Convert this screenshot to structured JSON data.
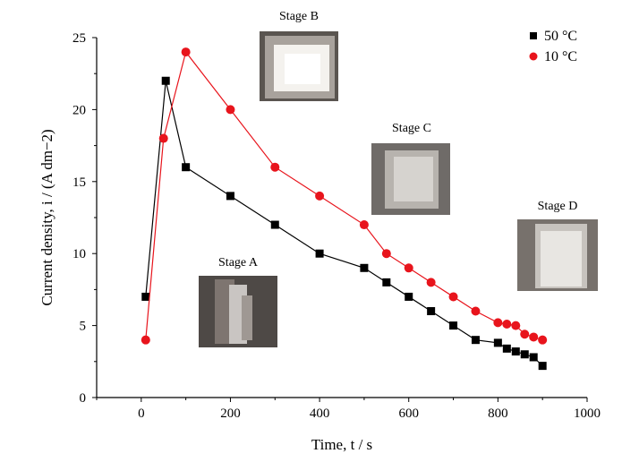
{
  "chart_data": {
    "type": "line",
    "xlabel": "Time, t / s",
    "ylabel": "Current density, i / (A dm−2)",
    "xlim": [
      -100,
      1000
    ],
    "ylim": [
      0,
      25
    ],
    "x_ticks": [
      0,
      200,
      400,
      600,
      800,
      1000
    ],
    "y_ticks": [
      0,
      5,
      10,
      15,
      20,
      25
    ],
    "legend_position": "top-right",
    "series": [
      {
        "name": "50 °C",
        "marker": "square",
        "color": "#000000",
        "points": [
          [
            10,
            7
          ],
          [
            55,
            22
          ],
          [
            100,
            16
          ],
          [
            200,
            14
          ],
          [
            300,
            12
          ],
          [
            400,
            10
          ],
          [
            500,
            9
          ],
          [
            550,
            8
          ],
          [
            600,
            7
          ],
          [
            650,
            6
          ],
          [
            700,
            5
          ],
          [
            750,
            4
          ],
          [
            800,
            3.8
          ],
          [
            820,
            3.4
          ],
          [
            840,
            3.2
          ],
          [
            860,
            3.0
          ],
          [
            880,
            2.8
          ],
          [
            900,
            2.2
          ]
        ]
      },
      {
        "name": "10 °C",
        "marker": "circle",
        "color": "#e8141c",
        "points": [
          [
            10,
            4
          ],
          [
            50,
            18
          ],
          [
            100,
            24
          ],
          [
            200,
            20
          ],
          [
            300,
            16
          ],
          [
            400,
            14
          ],
          [
            500,
            12
          ],
          [
            550,
            10
          ],
          [
            600,
            9
          ],
          [
            650,
            8
          ],
          [
            700,
            7
          ],
          [
            750,
            6
          ],
          [
            800,
            5.2
          ],
          [
            820,
            5.1
          ],
          [
            840,
            5.0
          ],
          [
            860,
            4.4
          ],
          [
            880,
            4.2
          ],
          [
            900,
            4.0
          ]
        ]
      }
    ],
    "annotations": [
      {
        "text": "Stage A"
      },
      {
        "text": "Stage B"
      },
      {
        "text": "Stage C"
      },
      {
        "text": "Stage D"
      }
    ]
  }
}
